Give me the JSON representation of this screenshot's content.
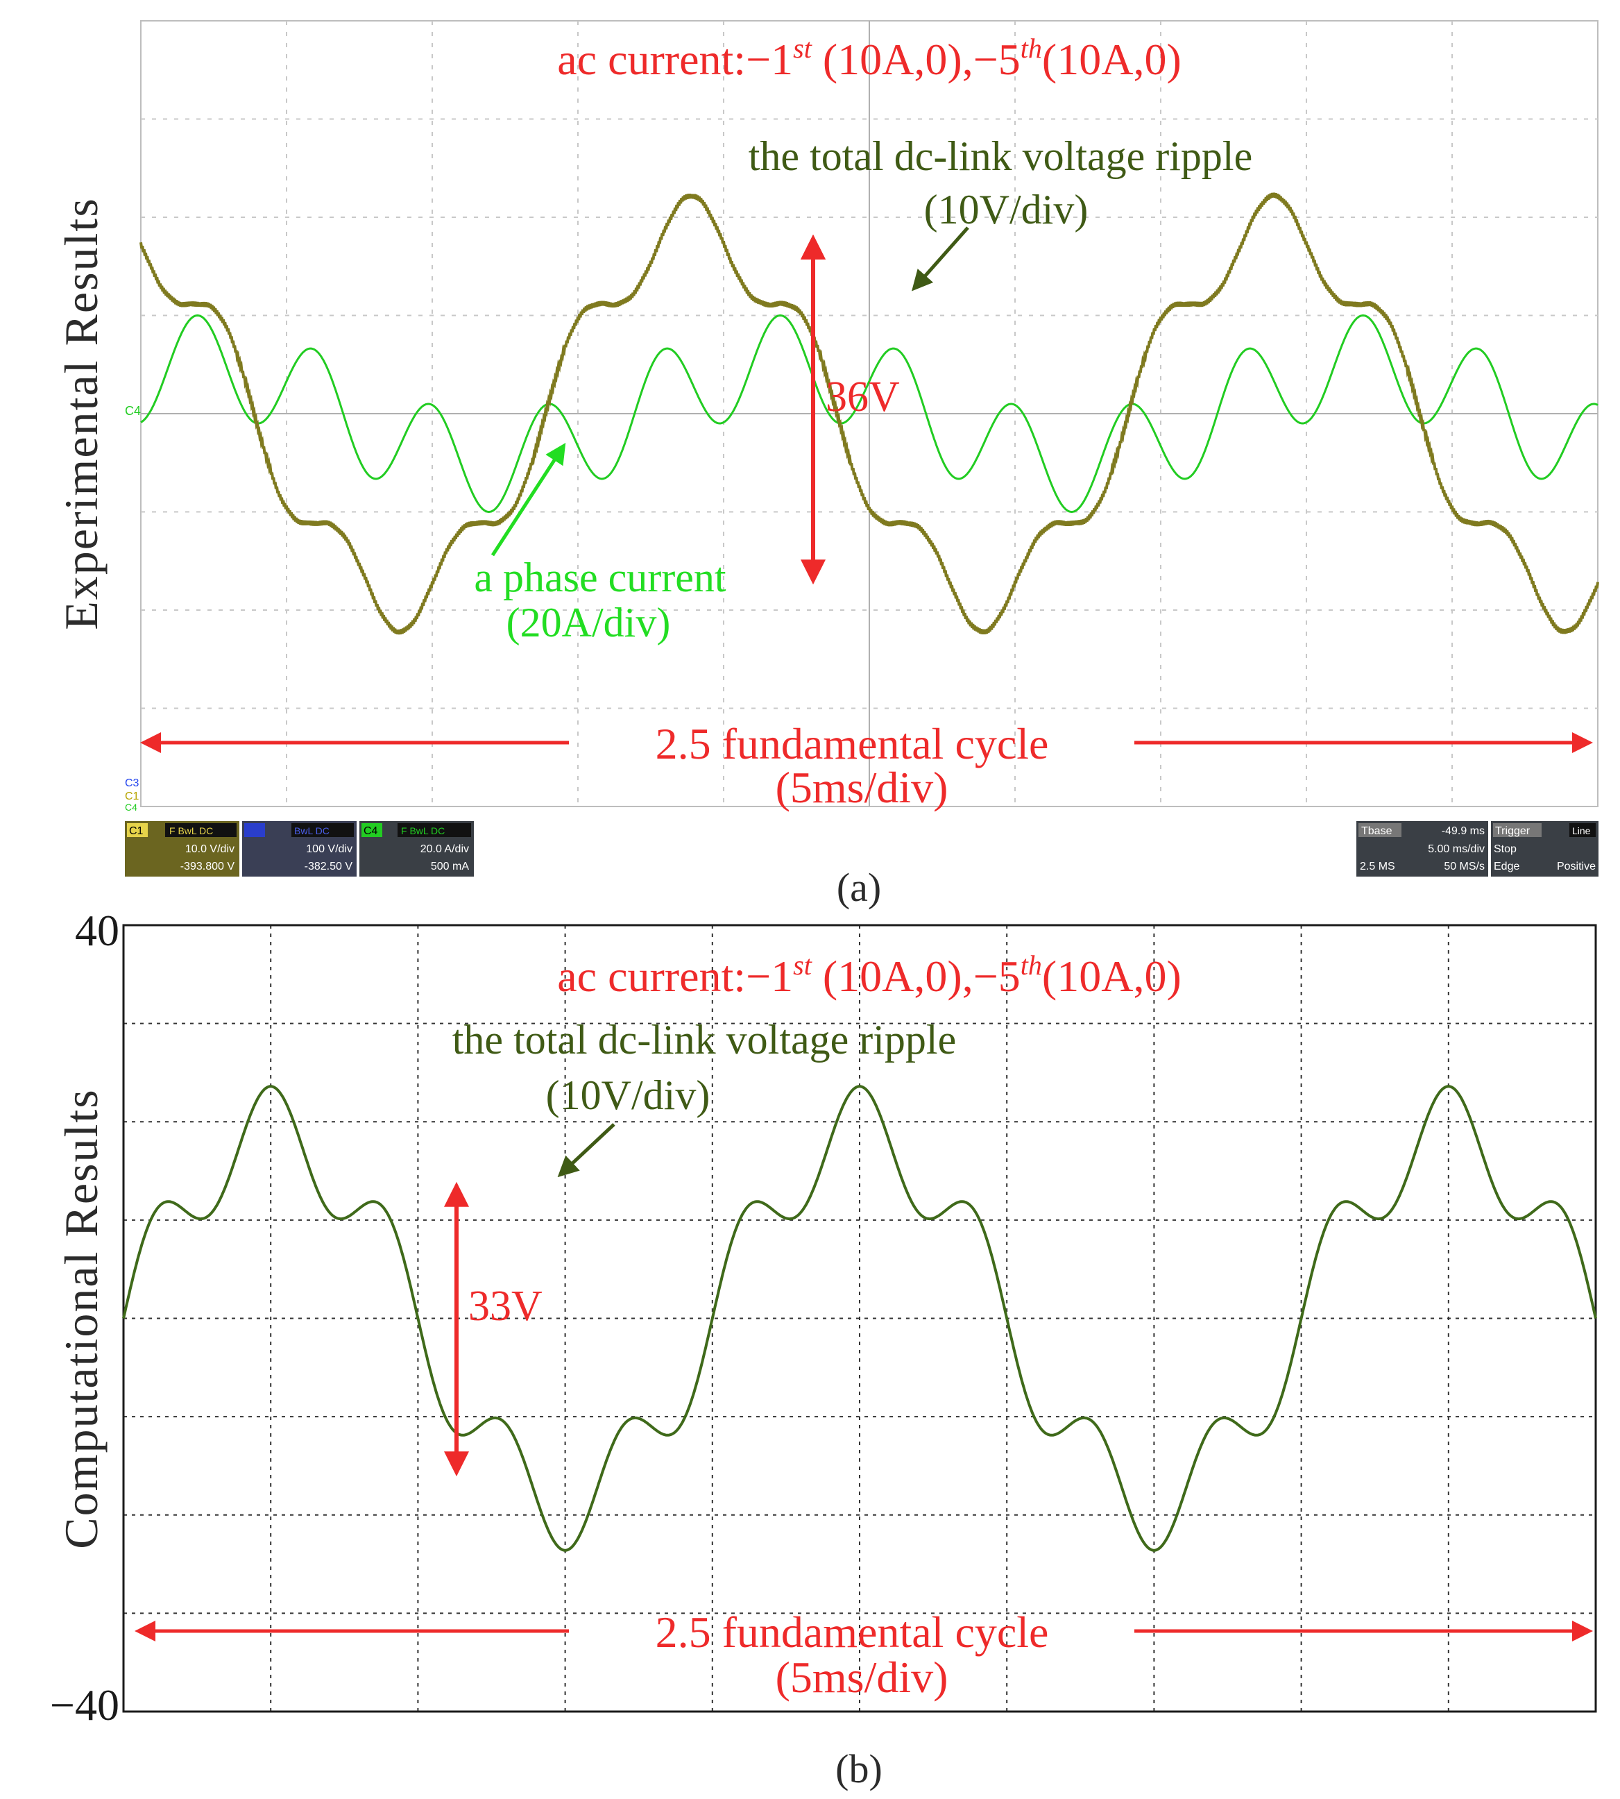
{
  "chart_data": [
    {
      "panel_label": "(a)",
      "type": "line",
      "ylabel": "Experimental Results",
      "title": "ac current:−1",
      "title_sup1": "st",
      "title_mid": " (10A,0),−5",
      "title_sup2": "th",
      "title_end": "(10A,0)",
      "grid": true,
      "x_divisions": 10,
      "y_divisions": 8,
      "x_scale": "5ms/div",
      "series": [
        {
          "name": "the total dc-link voltage ripple",
          "scale": "(10V/div)",
          "color": "#7f7a1f",
          "y_units": "div",
          "harmonics": {
            "fundamental_cycles": 2.5,
            "mean": 0.0,
            "h1": 1.9,
            "h5": 0.32,
            "phase_deg": 110
          }
        },
        {
          "name": "a phase current",
          "scale": "(20A/div)",
          "color": "#22cc22",
          "y_units": "div",
          "harmonics": {
            "fundamental_cycles": 2.5,
            "mean": 0.0,
            "h1": 0.5,
            "h5": 0.5,
            "phase_deg": 55
          }
        }
      ],
      "annotation": {
        "ripple_pp": "36V"
      },
      "x_annotation": {
        "line1": "2.5 fundamental cycle",
        "line2": "(5ms/div)"
      },
      "scope_status": {
        "c1": {
          "tag": "C1",
          "mode": "F BwL DC",
          "scale": "10.0 V/div",
          "offset": "-393.800 V"
        },
        "c2": {
          "mode": "BwL DC",
          "scale": "100 V/div",
          "offset": "-382.50 V"
        },
        "c4": {
          "tag": "C4",
          "mode": "F BwL DC",
          "scale": "20.0 A/div",
          "offset": "500 mA"
        },
        "timebase": {
          "label": "Tbase",
          "delay": "-49.9 ms",
          "rate": "5.00 ms/div",
          "samples": "2.5 MS",
          "srate": "50 MS/s"
        },
        "trigger": {
          "label": "Trigger",
          "source": "Line",
          "state": "Stop",
          "type": "Edge",
          "slope": "Positive"
        }
      }
    },
    {
      "panel_label": "(b)",
      "type": "line",
      "ylabel": "Computational Results",
      "title": "ac current:−1",
      "title_sup1": "st",
      "title_mid": " (10A,0),−5",
      "title_sup2": "th",
      "title_end": "(10A,0)",
      "grid": true,
      "x_divisions": 10,
      "y_divisions": 8,
      "x_scale": "5ms/div",
      "ylim": [
        -40,
        40
      ],
      "ytick_labels": [
        "40",
        "−40"
      ],
      "series": [
        {
          "name": "the total dc-link voltage ripple",
          "scale": "(10V/div)",
          "color": "#3f6a1a",
          "y_units": "V",
          "harmonics": {
            "fundamental_cycles": 2.5,
            "mean": 0.0,
            "h1": 19.0,
            "h5": 4.6,
            "phase_deg": 0
          }
        }
      ],
      "annotation": {
        "ripple_pp": "33V"
      },
      "x_annotation": {
        "line1": "2.5 fundamental cycle",
        "line2": "(5ms/div)"
      }
    }
  ]
}
